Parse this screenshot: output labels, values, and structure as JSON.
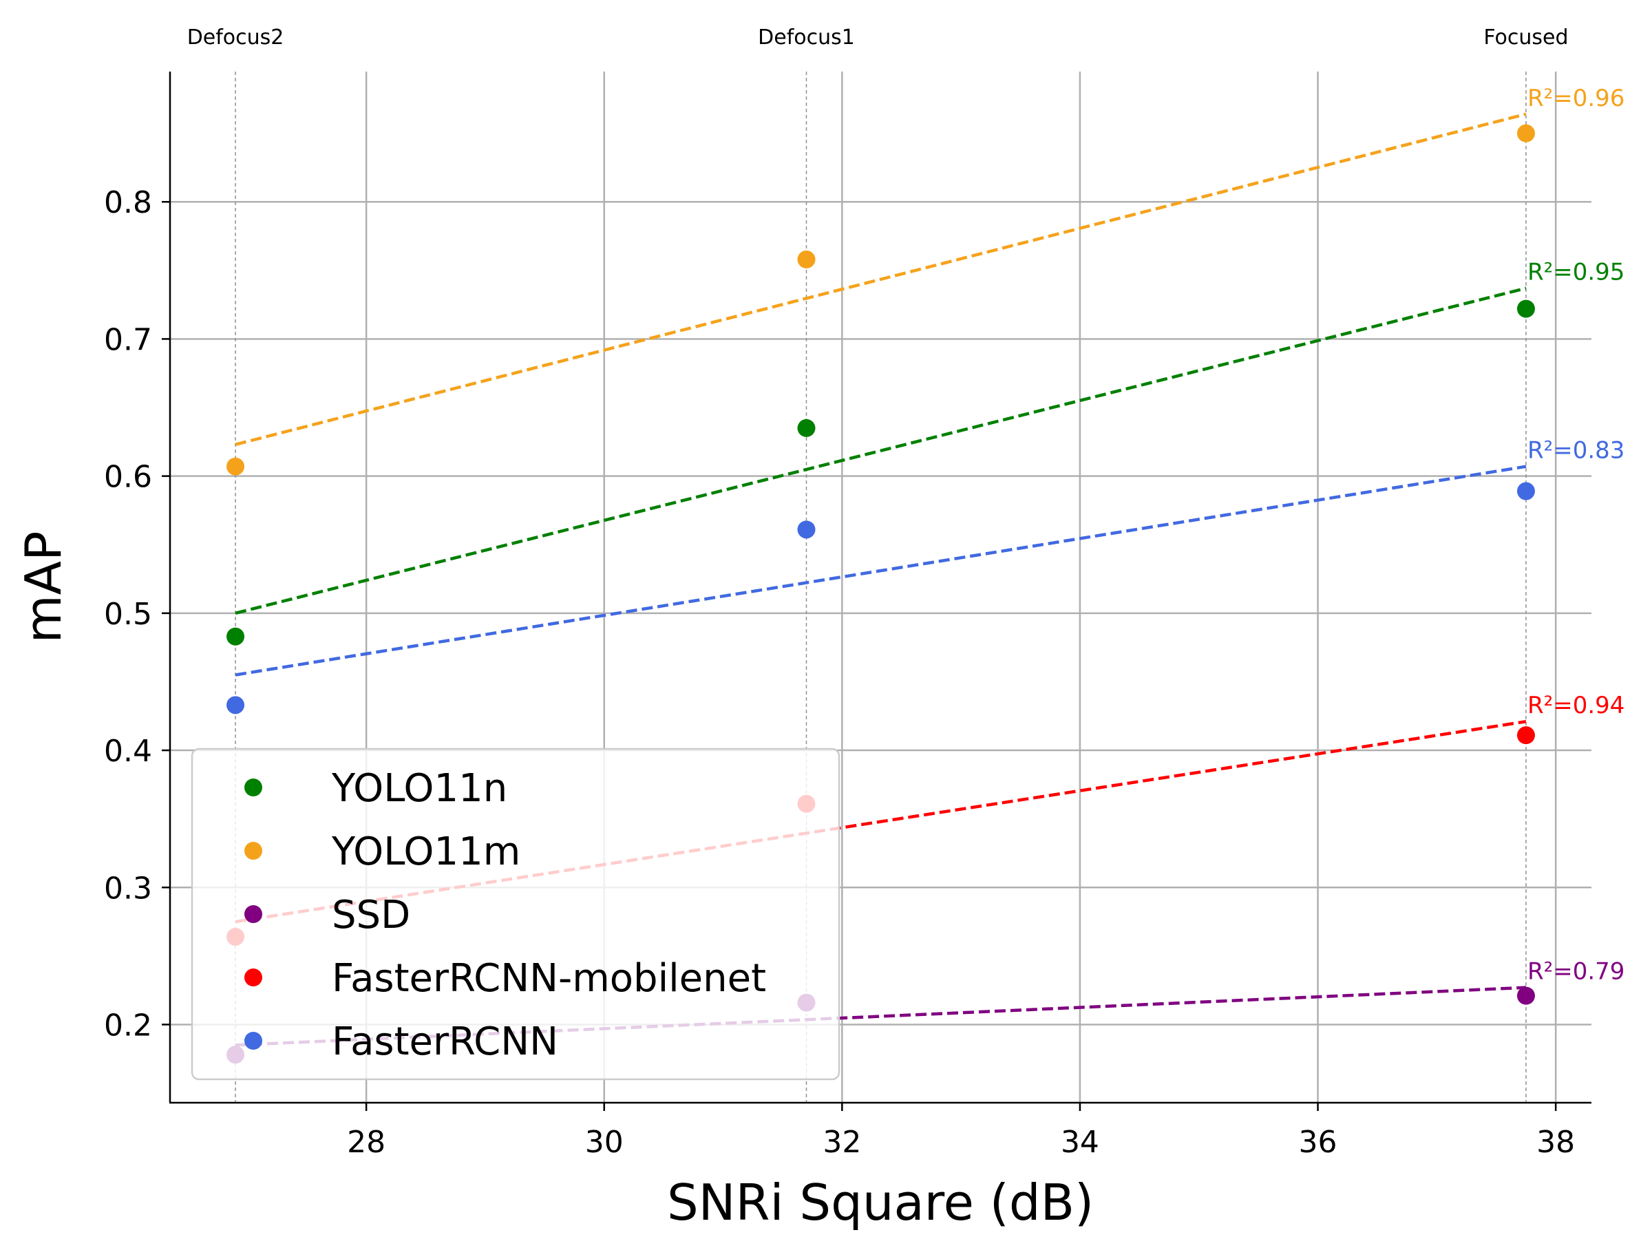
{
  "chart_data": {
    "type": "scatter",
    "xlabel": "SNRi Square (dB)",
    "ylabel": "mAP",
    "xlim": [
      26.35,
      38.3
    ],
    "ylim": [
      0.143,
      0.895
    ],
    "x_ticks": [
      28,
      30,
      32,
      34,
      36,
      38
    ],
    "x_tick_labels": [
      "28",
      "30",
      "32",
      "34",
      "36",
      "38"
    ],
    "y_ticks": [
      0.2,
      0.3,
      0.4,
      0.5,
      0.6,
      0.7,
      0.8
    ],
    "y_tick_labels": [
      "0.2",
      "0.3",
      "0.4",
      "0.5",
      "0.6",
      "0.7",
      "0.8"
    ],
    "grid": true,
    "legend_position": "lower-left",
    "conditions": [
      {
        "label": "Defocus2",
        "x": 26.9
      },
      {
        "label": "Defocus1",
        "x": 31.7
      },
      {
        "label": "Focused",
        "x": 37.75
      }
    ],
    "series": [
      {
        "name": "YOLO11n",
        "color": "#008000",
        "x": [
          26.9,
          31.7,
          37.75
        ],
        "y": [
          0.483,
          0.635,
          0.722
        ],
        "fit": [
          0.5,
          0.737
        ],
        "r2_label": "R²=0.95"
      },
      {
        "name": "YOLO11m",
        "color": "#f5a21b",
        "x": [
          26.9,
          31.7,
          37.75
        ],
        "y": [
          0.607,
          0.758,
          0.85
        ],
        "fit": [
          0.623,
          0.864
        ],
        "r2_label": "R²=0.96"
      },
      {
        "name": "SSD",
        "color": "#800080",
        "x": [
          26.9,
          31.7,
          37.75
        ],
        "y": [
          0.178,
          0.216,
          0.221
        ],
        "fit": [
          0.185,
          0.227
        ],
        "r2_label": "R²=0.79"
      },
      {
        "name": "FasterRCNN-mobilenet",
        "color": "#ff0000",
        "x": [
          26.9,
          31.7,
          37.75
        ],
        "y": [
          0.264,
          0.361,
          0.411
        ],
        "fit": [
          0.275,
          0.421
        ],
        "r2_label": "R²=0.94"
      },
      {
        "name": "FasterRCNN",
        "color": "#4169e1",
        "x": [
          26.9,
          31.7,
          37.75
        ],
        "y": [
          0.433,
          0.561,
          0.589
        ],
        "fit": [
          0.455,
          0.607
        ],
        "r2_label": "R²=0.83"
      }
    ]
  }
}
